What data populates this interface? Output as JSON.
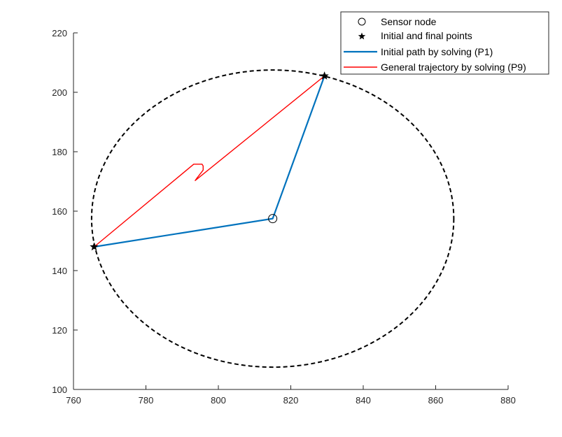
{
  "chart_data": {
    "type": "line",
    "xlim": [
      760,
      880
    ],
    "ylim": [
      100,
      220
    ],
    "x_ticks": [
      760,
      780,
      800,
      820,
      840,
      860,
      880
    ],
    "y_ticks": [
      100,
      120,
      140,
      160,
      180,
      200,
      220
    ],
    "grid": false,
    "legend_position": "top-right",
    "colors": {
      "circle": "#000000",
      "initial_path": "#0072BD",
      "trajectory": "#FF0000",
      "axis": "#262626"
    },
    "circle": {
      "center": [
        815,
        157.5
      ],
      "radius": 50
    },
    "series": [
      {
        "name": "Sensor node",
        "marker": "circle",
        "points": [
          [
            815,
            157.5
          ]
        ]
      },
      {
        "name": "Initial and final points",
        "marker": "star",
        "points": [
          [
            765.7,
            148
          ],
          [
            829.3,
            205.5
          ]
        ]
      },
      {
        "name": "Initial path by solving (P1)",
        "style": "line",
        "points": [
          [
            765.7,
            148
          ],
          [
            815,
            157.5
          ],
          [
            829.3,
            205.5
          ]
        ]
      },
      {
        "name": "General trajectory by solving (P9)",
        "style": "line",
        "points": [
          [
            765.7,
            148
          ],
          [
            793.2,
            175.8
          ],
          [
            795.5,
            175.8
          ],
          [
            795.8,
            175.2
          ],
          [
            795.8,
            173.8
          ],
          [
            794.0,
            171.0
          ],
          [
            793.6,
            170.3
          ],
          [
            829.3,
            205.5
          ]
        ]
      }
    ]
  }
}
